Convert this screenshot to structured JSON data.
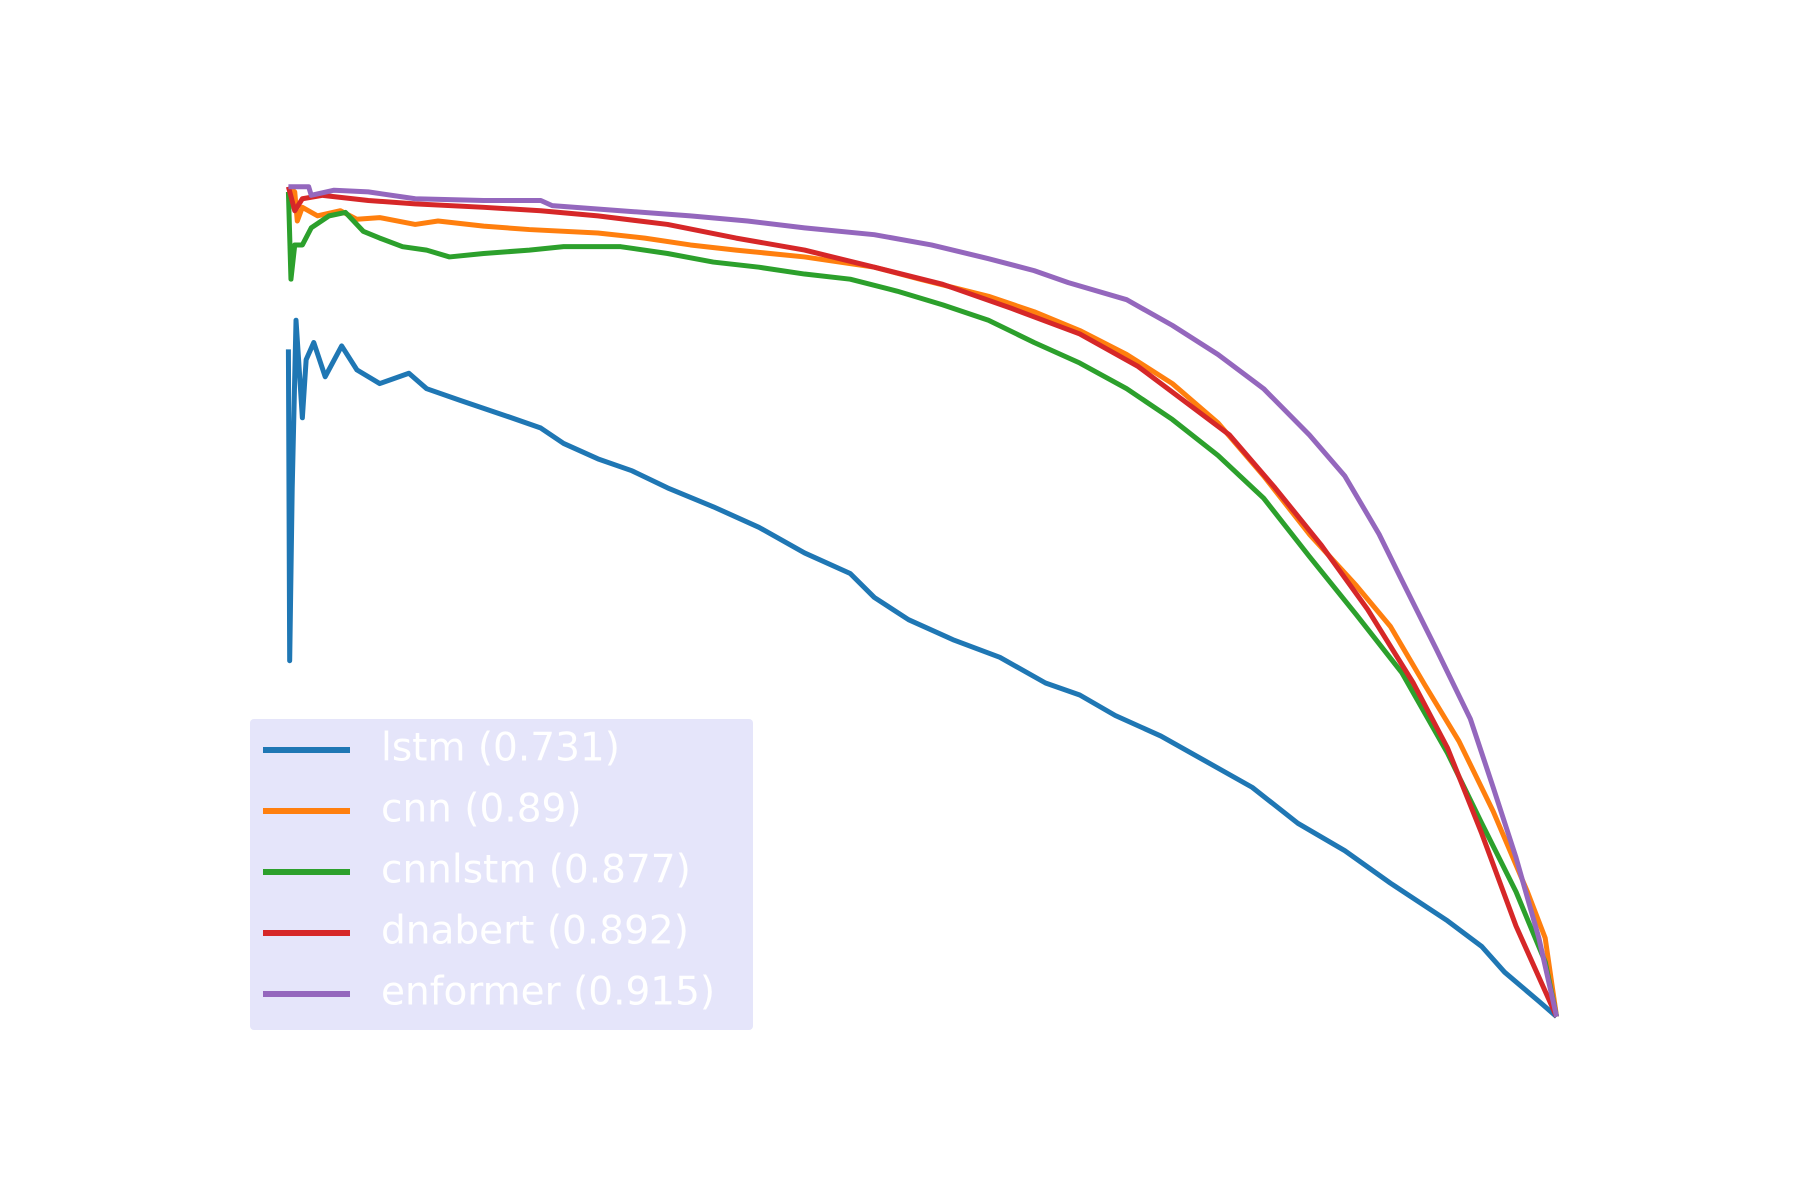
{
  "chart_data": {
    "type": "line",
    "xlim": [
      -0.05,
      1.05
    ],
    "ylim": [
      0.485,
      1.025
    ],
    "legend": "lower left",
    "series": [
      {
        "name": "lstm (0.731)",
        "color": "#1f77b4",
        "x": [
          0,
          0.001,
          0.003,
          0.006,
          0.011,
          0.014,
          0.02,
          0.029,
          0.042,
          0.054,
          0.072,
          0.095,
          0.109,
          0.136,
          0.172,
          0.199,
          0.217,
          0.244,
          0.271,
          0.299,
          0.335,
          0.371,
          0.407,
          0.443,
          0.462,
          0.489,
          0.525,
          0.561,
          0.597,
          0.624,
          0.652,
          0.688,
          0.724,
          0.76,
          0.796,
          0.833,
          0.869,
          0.914,
          0.941,
          0.959,
          0.986,
          1.0
        ],
        "values": [
          0.905,
          0.723,
          0.824,
          0.922,
          0.865,
          0.899,
          0.909,
          0.889,
          0.907,
          0.893,
          0.885,
          0.891,
          0.882,
          0.875,
          0.866,
          0.859,
          0.85,
          0.841,
          0.834,
          0.824,
          0.813,
          0.801,
          0.786,
          0.774,
          0.76,
          0.747,
          0.735,
          0.725,
          0.71,
          0.703,
          0.691,
          0.679,
          0.664,
          0.649,
          0.628,
          0.612,
          0.593,
          0.571,
          0.556,
          0.541,
          0.524,
          0.515
        ]
      },
      {
        "name": "cnn (0.89)",
        "color": "#ff7f0e",
        "x": [
          0,
          0.005,
          0.007,
          0.011,
          0.023,
          0.041,
          0.054,
          0.072,
          0.1,
          0.118,
          0.154,
          0.19,
          0.244,
          0.281,
          0.317,
          0.353,
          0.407,
          0.462,
          0.498,
          0.552,
          0.588,
          0.624,
          0.661,
          0.697,
          0.733,
          0.769,
          0.805,
          0.842,
          0.869,
          0.896,
          0.923,
          0.95,
          0.977,
          0.991,
          1.0
        ],
        "values": [
          1.0,
          0.997,
          0.98,
          0.988,
          0.983,
          0.986,
          0.981,
          0.982,
          0.978,
          0.98,
          0.977,
          0.975,
          0.973,
          0.97,
          0.966,
          0.963,
          0.959,
          0.953,
          0.946,
          0.936,
          0.927,
          0.916,
          0.902,
          0.885,
          0.862,
          0.831,
          0.797,
          0.767,
          0.743,
          0.709,
          0.676,
          0.635,
          0.588,
          0.561,
          0.515
        ]
      },
      {
        "name": "cnnlstm (0.877)",
        "color": "#2ca02c",
        "x": [
          0,
          0.002,
          0.005,
          0.011,
          0.018,
          0.032,
          0.045,
          0.059,
          0.072,
          0.09,
          0.109,
          0.127,
          0.154,
          0.19,
          0.217,
          0.262,
          0.299,
          0.335,
          0.371,
          0.407,
          0.443,
          0.48,
          0.516,
          0.552,
          0.588,
          0.624,
          0.661,
          0.697,
          0.733,
          0.769,
          0.805,
          0.842,
          0.878,
          0.914,
          0.941,
          0.968,
          0.991,
          1.0
        ],
        "values": [
          0.997,
          0.946,
          0.966,
          0.966,
          0.976,
          0.983,
          0.985,
          0.974,
          0.97,
          0.965,
          0.963,
          0.959,
          0.961,
          0.963,
          0.965,
          0.965,
          0.961,
          0.956,
          0.953,
          0.949,
          0.946,
          0.939,
          0.931,
          0.922,
          0.909,
          0.897,
          0.882,
          0.864,
          0.843,
          0.818,
          0.784,
          0.75,
          0.716,
          0.669,
          0.628,
          0.588,
          0.547,
          0.515
        ]
      },
      {
        "name": "dnabert (0.892)",
        "color": "#d62728",
        "x": [
          0,
          0.005,
          0.011,
          0.027,
          0.063,
          0.1,
          0.154,
          0.199,
          0.244,
          0.299,
          0.353,
          0.407,
          0.462,
          0.516,
          0.57,
          0.624,
          0.67,
          0.706,
          0.742,
          0.778,
          0.814,
          0.851,
          0.887,
          0.914,
          0.941,
          0.968,
          1.0
        ],
        "values": [
          1.0,
          0.986,
          0.993,
          0.995,
          0.992,
          0.99,
          0.988,
          0.986,
          0.983,
          0.978,
          0.97,
          0.963,
          0.953,
          0.943,
          0.929,
          0.914,
          0.895,
          0.875,
          0.855,
          0.824,
          0.791,
          0.753,
          0.71,
          0.672,
          0.622,
          0.568,
          0.515
        ]
      },
      {
        "name": "enformer (0.915)",
        "color": "#9467bd",
        "x": [
          0,
          0.016,
          0.018,
          0.036,
          0.063,
          0.1,
          0.154,
          0.199,
          0.208,
          0.262,
          0.317,
          0.362,
          0.407,
          0.462,
          0.507,
          0.552,
          0.588,
          0.615,
          0.661,
          0.697,
          0.733,
          0.769,
          0.805,
          0.833,
          0.86,
          0.878,
          0.905,
          0.932,
          0.95,
          0.968,
          0.986,
          1.0
        ],
        "values": [
          1.0,
          1.0,
          0.995,
          0.998,
          0.997,
          0.993,
          0.992,
          0.992,
          0.989,
          0.986,
          0.983,
          0.98,
          0.976,
          0.972,
          0.966,
          0.958,
          0.951,
          0.944,
          0.934,
          0.919,
          0.902,
          0.882,
          0.855,
          0.831,
          0.797,
          0.77,
          0.73,
          0.689,
          0.649,
          0.608,
          0.561,
          0.515
        ]
      }
    ]
  }
}
